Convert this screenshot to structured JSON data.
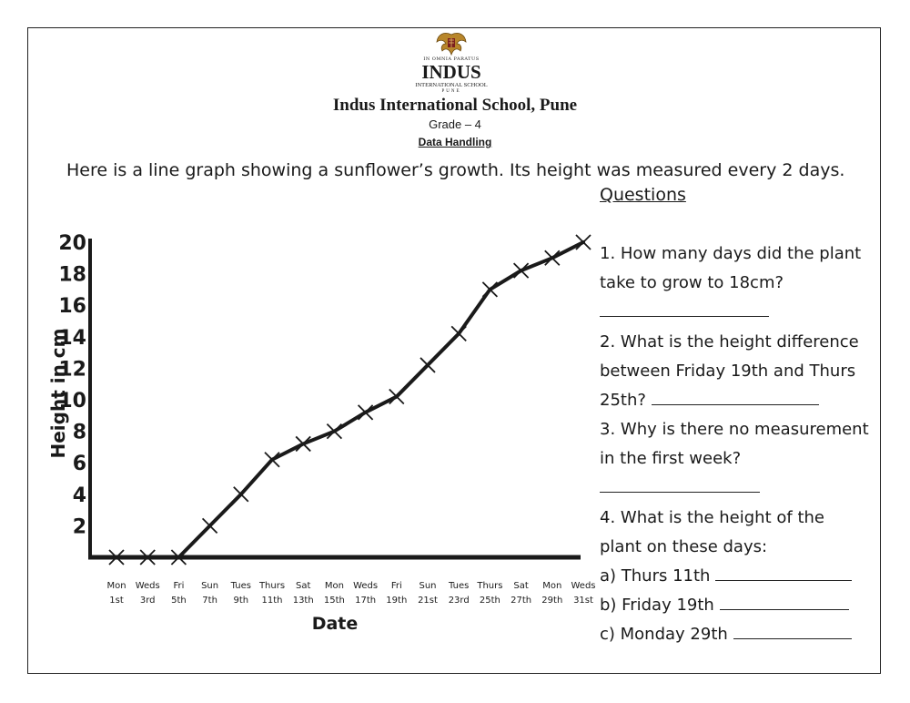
{
  "header": {
    "logo_motto": "IN OMNIA PARATUS",
    "logo_name": "INDUS",
    "logo_sub": "INTERNATIONAL SCHOOL",
    "logo_city": "PUNE",
    "school": "Indus International School, Pune",
    "grade": "Grade – 4",
    "topic": "Data Handling"
  },
  "intro": "Here is a line graph showing a sunflower’s growth. Its height was measured every 2 days.",
  "questions": {
    "heading": "Questions",
    "q1_line1": "1. How many days did the plant",
    "q1_line2": "take to grow to 18cm?",
    "q2_line1": "2. What is the height difference",
    "q2_line2": "between Friday 19th and Thurs",
    "q2_line3": "25th?",
    "q3_line1": "3.  Why is there no measurement",
    "q3_line2": "in the first week?",
    "q4_line1": "4. What is the height of the",
    "q4_line2": "plant on these days:",
    "q4_a": "a) Thurs 11th",
    "q4_b": "b) Friday 19th",
    "q4_c": "c) Monday 29th"
  },
  "chart_data": {
    "type": "line",
    "xlabel": "Date",
    "ylabel": "Height in cm",
    "ylim": [
      0,
      20
    ],
    "yticks": [
      2,
      4,
      6,
      8,
      10,
      12,
      14,
      16,
      18,
      20
    ],
    "categories": [
      [
        "Mon",
        "1st"
      ],
      [
        "Weds",
        "3rd"
      ],
      [
        "Fri",
        "5th"
      ],
      [
        "Sun",
        "7th"
      ],
      [
        "Tues",
        "9th"
      ],
      [
        "Thurs",
        "11th"
      ],
      [
        "Sat",
        "13th"
      ],
      [
        "Mon",
        "15th"
      ],
      [
        "Weds",
        "17th"
      ],
      [
        "Fri",
        "19th"
      ],
      [
        "Sun",
        "21st"
      ],
      [
        "Tues",
        "23rd"
      ],
      [
        "Thurs",
        "25th"
      ],
      [
        "Sat",
        "27th"
      ],
      [
        "Mon",
        "29th"
      ],
      [
        "Weds",
        "31st"
      ]
    ],
    "values": [
      0,
      0,
      0,
      2,
      4,
      6.2,
      7.2,
      8,
      9.2,
      10.2,
      12.2,
      14.2,
      17,
      18.2,
      19,
      20
    ],
    "marker": "x",
    "color": "#1a1a1a"
  }
}
